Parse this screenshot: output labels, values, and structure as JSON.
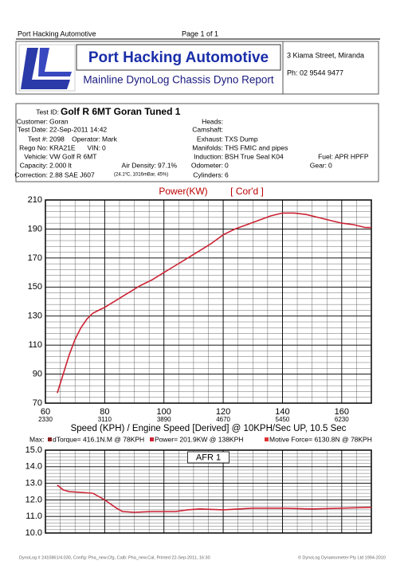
{
  "header": {
    "company_top": "Port Hacking Automotive",
    "page": "Page 1 of 1",
    "logo_title": "Port Hacking Automotive",
    "logo_subtitle": "Mainline DynoLog Chassis Dyno Report",
    "address": "3 Kiama Street, Miranda",
    "phone": "Ph: 02 9544 9477"
  },
  "info": {
    "test_id_label": "Test ID:",
    "test_id": "Golf R 6MT Goran Tuned 1",
    "fields": [
      {
        "label": "Customer:",
        "value": "Goran"
      },
      {
        "label": "Test Date:",
        "value": "22-Sep-2011 14:42"
      },
      {
        "label": "Test #:",
        "value": "2098"
      },
      {
        "label": "Operator:",
        "value": "Mark"
      },
      {
        "label": "Rego No:",
        "value": "KRA21E"
      },
      {
        "label": "VIN:",
        "value": "0"
      },
      {
        "label": "Vehicle:",
        "value": "VW Golf R 6MT"
      },
      {
        "label": "Capacity:",
        "value": "2.000 lt"
      },
      {
        "label": "Air Density:",
        "value": "97.1%"
      },
      {
        "label": "Correction:",
        "value": "2.88 SAE J607"
      },
      {
        "value": "(24.1ºC, 1016mBar, 45%)"
      },
      {
        "label": "Heads:"
      },
      {
        "label": "Camshaft:"
      },
      {
        "label": "Exhaust:",
        "value": "TXS Dump"
      },
      {
        "label": "Manifolds:",
        "value": "THS FMIC and pipes"
      },
      {
        "label": "Induction:",
        "value": "BSH True Seal K04"
      },
      {
        "label": "Fuel:",
        "value": "APR HPFP"
      },
      {
        "label": "Odometer:",
        "value": "0"
      },
      {
        "label": "Gear:",
        "value": "0"
      },
      {
        "label": "Cylinders:",
        "value": "6"
      }
    ]
  },
  "chart_data": [
    {
      "type": "line",
      "title": "Power(KW)",
      "subtitle": "[ Cor'd ]",
      "x_label": "Speed (KPH) / Engine Speed [Derived] @ 10KPH/Sec UP, 10.5 Sec",
      "x": [
        64,
        66,
        68,
        70,
        72,
        74,
        76,
        78,
        80,
        84,
        88,
        92,
        96,
        100,
        104,
        108,
        112,
        116,
        120,
        124,
        128,
        132,
        136,
        140,
        144,
        148,
        152,
        156,
        160,
        164,
        168,
        170
      ],
      "values": [
        77,
        90,
        103,
        114,
        122,
        128,
        132,
        134,
        136,
        141,
        146,
        151,
        155,
        160,
        165,
        170,
        175,
        180,
        186,
        190,
        193,
        196,
        199,
        201,
        201,
        200,
        198,
        196,
        194,
        193,
        191,
        191
      ],
      "color": "#cc2233",
      "xlim": [
        60,
        170
      ],
      "xticks": [
        60,
        80,
        100,
        120,
        140,
        160
      ],
      "x_secondary_labels": [
        2330,
        3110,
        3890,
        4670,
        5450,
        6230
      ],
      "ylim": [
        70,
        210
      ],
      "yticks": [
        70,
        90,
        110,
        130,
        150,
        170,
        190,
        210
      ],
      "grid": true
    },
    {
      "type": "line",
      "title": "AFR 1",
      "x": [
        64,
        66,
        68,
        72,
        76,
        80,
        84,
        86,
        90,
        96,
        104,
        108,
        112,
        120,
        130,
        140,
        150,
        160,
        170
      ],
      "values": [
        12.9,
        12.6,
        12.5,
        12.45,
        12.4,
        12.0,
        11.5,
        11.3,
        11.25,
        11.3,
        11.3,
        11.4,
        11.45,
        11.4,
        11.5,
        11.5,
        11.45,
        11.5,
        11.55
      ],
      "color": "#cc2233",
      "xlim": [
        60,
        170
      ],
      "xticks": [
        60,
        80,
        100,
        120,
        140,
        160
      ],
      "ylim": [
        10,
        15
      ],
      "yticks": [
        {
          "value": 10,
          "label": "10.0"
        },
        {
          "value": 11,
          "label": "11.0"
        },
        {
          "value": 12,
          "label": "12.0"
        },
        {
          "value": 13,
          "label": "13.0"
        },
        {
          "value": 14,
          "label": "14.0"
        },
        {
          "value": 15,
          "label": "15.0"
        }
      ],
      "grid": true
    }
  ],
  "max_line": {
    "label": "Max:",
    "items": [
      {
        "text": "dTorque= 416.1N.M @ 78KPH",
        "color": "#882222"
      },
      {
        "text": "Power= 201.9KW @ 138KPH",
        "color": "#cc2233"
      },
      {
        "text": "Motive Force= 6130.8N @ 78KPH",
        "color": "#dd3333"
      }
    ]
  },
  "footer": {
    "left": "DynoLog # 2410861/4.030, Config: Pha_new.Cfg, Calb: Pha_new.Cal, Printed 22-Sep-2011, 16:30",
    "right": "© DynoLog Dynamometer Pty Ltd 1994-2010"
  }
}
